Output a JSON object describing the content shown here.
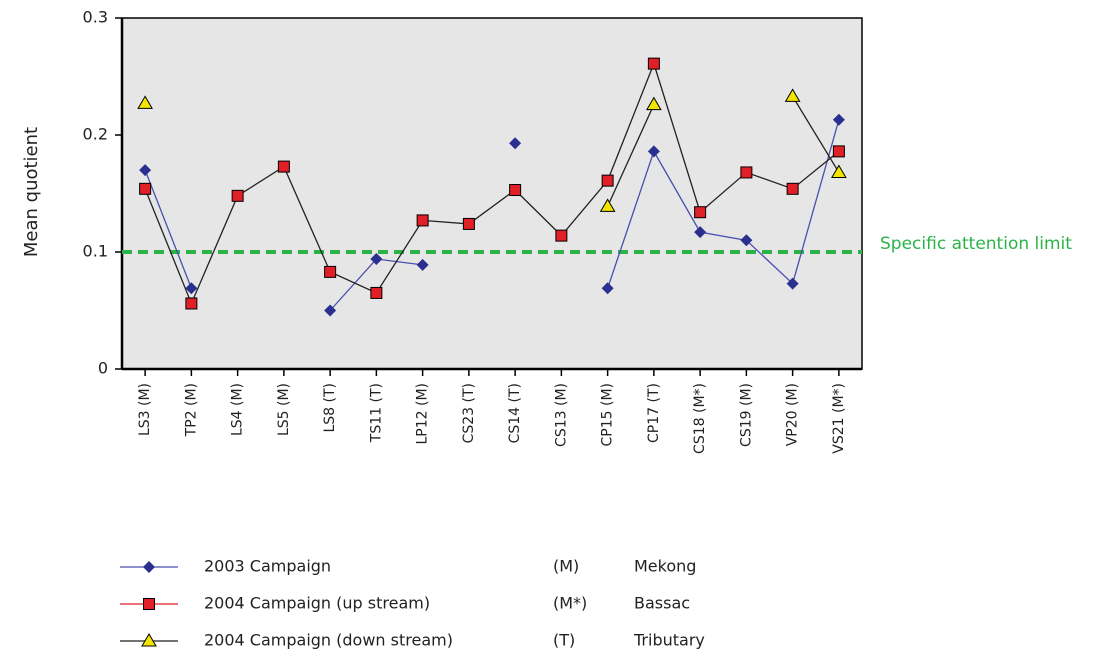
{
  "chart_data": {
    "type": "line",
    "y_label": "Mean quotient",
    "categories": [
      "LS3 (M)",
      "TP2 (M)",
      "LS4 (M)",
      "LS5 (M)",
      "LS8 (T)",
      "TS11 (T)",
      "LP12 (M)",
      "CS23 (T)",
      "CS14 (T)",
      "CS13 (M)",
      "CP15 (M)",
      "CP17 (T)",
      "CS18 (M*)",
      "CS19 (M)",
      "VP20 (M)",
      "VS21 (M*)"
    ],
    "series": [
      {
        "name": "2003 Campaign",
        "color": "#2b2f8f",
        "line_color": "#4a4fb0",
        "marker": "diamond",
        "values": [
          0.17,
          0.069,
          null,
          null,
          0.05,
          0.094,
          0.089,
          null,
          0.193,
          null,
          0.069,
          0.186,
          0.117,
          0.11,
          0.073,
          0.213
        ]
      },
      {
        "name": "2004 Campaign (up stream)",
        "color": "#e01f26",
        "line_color": "#222222",
        "marker": "square",
        "values": [
          0.154,
          0.056,
          0.148,
          0.173,
          0.083,
          0.065,
          0.127,
          0.124,
          0.153,
          0.114,
          0.161,
          0.261,
          0.134,
          0.168,
          0.154,
          0.186
        ]
      },
      {
        "name": "2004 Campaign (down stream)",
        "color": "#f2e600",
        "line_color": "#222222",
        "marker": "triangle",
        "values": [
          0.227,
          null,
          null,
          null,
          null,
          null,
          null,
          null,
          null,
          null,
          0.139,
          0.226,
          null,
          null,
          0.233,
          0.168
        ]
      }
    ],
    "ylim": [
      0,
      0.3
    ],
    "yticks": [
      0,
      0.1,
      0.2,
      0.3
    ],
    "reference_line": {
      "value": 0.1,
      "label": "Specific attention limit",
      "color": "#2bb34a"
    },
    "notes": [
      {
        "code": "(M)",
        "meaning": "Mekong"
      },
      {
        "code": "(M*)",
        "meaning": "Bassac"
      },
      {
        "code": "(T)",
        "meaning": "Tributary"
      }
    ]
  }
}
